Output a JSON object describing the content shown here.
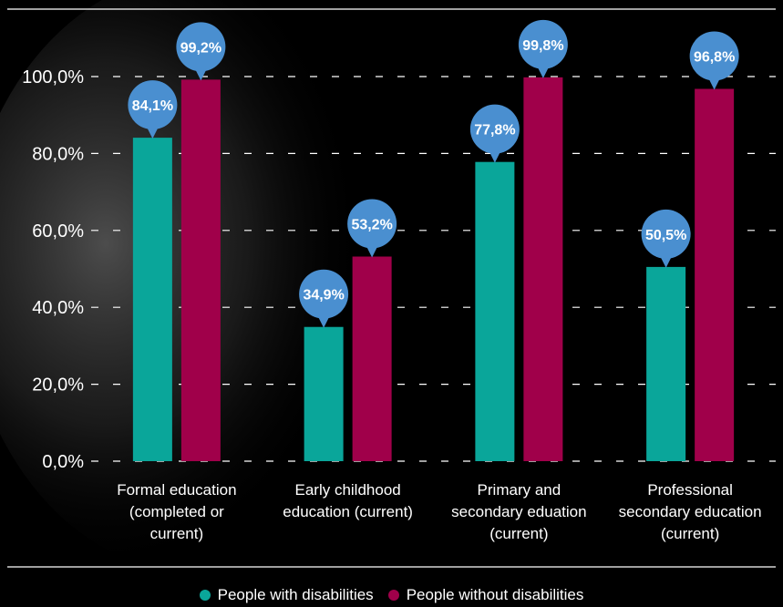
{
  "chart_data": {
    "type": "bar",
    "categories": [
      [
        "Formal education",
        "(completed or",
        "current)"
      ],
      [
        "Early childhood",
        "education (current)"
      ],
      [
        "Primary and",
        "secondary eduation",
        "(current)"
      ],
      [
        "Professional",
        "secondary education",
        "(current)"
      ]
    ],
    "series": [
      {
        "name": "People with disabilities",
        "color": "#0aa69a",
        "values": [
          84.1,
          34.9,
          77.8,
          50.5
        ],
        "labels": [
          "84,1%",
          "34,9%",
          "77,8%",
          "50,5%"
        ]
      },
      {
        "name": "People without disabilities",
        "color": "#a0004a",
        "values": [
          99.2,
          53.2,
          99.8,
          96.8
        ],
        "labels": [
          "99,2%",
          "53,2%",
          "99,8%",
          "96,8%"
        ]
      }
    ],
    "ylim": [
      0,
      100
    ],
    "yticks": [
      0,
      20,
      40,
      60,
      80,
      100
    ],
    "ytick_labels": [
      "0,0%",
      "20,0%",
      "40,0%",
      "60,0%",
      "80,0%",
      "100,0%"
    ],
    "grid": "dashed horizontal",
    "legend": "bottom-center",
    "callout_color": "#4a8fd0"
  }
}
